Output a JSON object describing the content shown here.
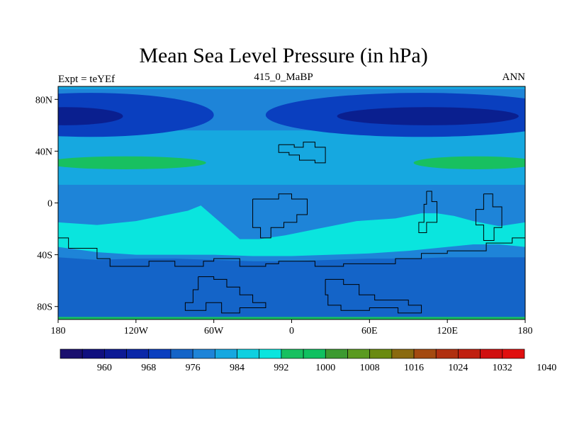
{
  "title": "Mean Sea Level Pressure (in hPa)",
  "left_label": "Expt = teYEf",
  "center_label": "415_0_MaBP",
  "right_label": "ANN",
  "chart_data": {
    "type": "heatmap",
    "title": "Mean Sea Level Pressure (in hPa)",
    "x_range": [
      -180,
      180
    ],
    "y_range": [
      -90,
      90
    ],
    "x_ticks": [
      {
        "value": -180,
        "label": "180"
      },
      {
        "value": -120,
        "label": "120W"
      },
      {
        "value": -60,
        "label": "60W"
      },
      {
        "value": 0,
        "label": "0"
      },
      {
        "value": 60,
        "label": "60E"
      },
      {
        "value": 120,
        "label": "120E"
      },
      {
        "value": 180,
        "label": "180"
      }
    ],
    "y_ticks": [
      {
        "value": 80,
        "label": "80N"
      },
      {
        "value": 40,
        "label": "40N"
      },
      {
        "value": 0,
        "label": "0"
      },
      {
        "value": -40,
        "label": "40S"
      },
      {
        "value": -80,
        "label": "80S"
      }
    ],
    "colorbar": {
      "colors": [
        "#1a0f6e",
        "#10107f",
        "#0c1a95",
        "#0a27a8",
        "#0a3fbf",
        "#1464c8",
        "#1e84d8",
        "#16a8e0",
        "#0fd0e0",
        "#0ae5de",
        "#18c060",
        "#10c060",
        "#3c9a30",
        "#5a9a20",
        "#6a8a10",
        "#8a6a10",
        "#a44a10",
        "#b03010",
        "#c02010",
        "#d01010",
        "#e01010"
      ],
      "tick_labels": [
        "960",
        "968",
        "976",
        "984",
        "992",
        "1000",
        "1008",
        "1016",
        "1024",
        "1032",
        "1040"
      ]
    },
    "fields": [
      {
        "level": "988",
        "color": "#1e84d8",
        "region": "global background"
      },
      {
        "level": "980",
        "color": "#0a3fbf",
        "region": "northern subpolar trough (lon -180..-95 and -5..180)"
      },
      {
        "level": "972",
        "color": "#0a1f8f",
        "region": "northern low cores"
      },
      {
        "level": "992",
        "color": "#16a8e0",
        "region": "northern mid-latitude band"
      },
      {
        "level": "1004",
        "color": "#18c060",
        "region": "northern subtropical high cells"
      },
      {
        "level": "992",
        "color": "#16a8e0",
        "region": "tropical belt"
      },
      {
        "level": "996",
        "color": "#0ae5de",
        "region": "southern subtropical high belt"
      },
      {
        "level": "984",
        "color": "#1464c8",
        "region": "southern subpolar band"
      },
      {
        "level": "988",
        "color": "#1e84d8",
        "region": "monsoon lows"
      }
    ],
    "continents": [
      {
        "name": "northern-small-continent",
        "lonlat": [
          [
            -10,
            45
          ],
          [
            2,
            45
          ],
          [
            2,
            43
          ],
          [
            9,
            43
          ],
          [
            9,
            47
          ],
          [
            18,
            47
          ],
          [
            18,
            43
          ],
          [
            26,
            43
          ],
          [
            26,
            31
          ],
          [
            18,
            31
          ],
          [
            18,
            33
          ],
          [
            6,
            33
          ],
          [
            6,
            37
          ],
          [
            -2,
            37
          ],
          [
            -2,
            39
          ],
          [
            -10,
            39
          ],
          [
            -10,
            45
          ]
        ]
      },
      {
        "name": "equatorial-continent-north",
        "lonlat": [
          [
            -30,
            3
          ],
          [
            -10,
            3
          ],
          [
            -10,
            7
          ],
          [
            0,
            7
          ],
          [
            0,
            3
          ],
          [
            12,
            3
          ],
          [
            12,
            -9
          ],
          [
            4,
            -9
          ],
          [
            4,
            -15
          ],
          [
            -6,
            -15
          ],
          [
            -6,
            -19
          ],
          [
            -16,
            -19
          ],
          [
            -16,
            -27
          ],
          [
            -24,
            -27
          ],
          [
            -24,
            -19
          ],
          [
            -30,
            -19
          ],
          [
            -30,
            3
          ]
        ]
      },
      {
        "name": "eastern-island-chain",
        "lonlat": [
          [
            104,
            9
          ],
          [
            108,
            9
          ],
          [
            108,
            1
          ],
          [
            112,
            1
          ],
          [
            112,
            -15
          ],
          [
            104,
            -15
          ],
          [
            104,
            -23
          ],
          [
            98,
            -23
          ],
          [
            98,
            -15
          ],
          [
            102,
            -15
          ],
          [
            102,
            -1
          ],
          [
            104,
            -1
          ],
          [
            104,
            9
          ]
        ]
      },
      {
        "name": "far-east-landmass",
        "lonlat": [
          [
            148,
            7
          ],
          [
            155,
            7
          ],
          [
            155,
            -3
          ],
          [
            162,
            -3
          ],
          [
            162,
            -19
          ],
          [
            156,
            -19
          ],
          [
            156,
            -29
          ],
          [
            148,
            -29
          ],
          [
            148,
            -17
          ],
          [
            142,
            -17
          ],
          [
            142,
            -5
          ],
          [
            148,
            -5
          ],
          [
            148,
            7
          ]
        ]
      },
      {
        "name": "western-southern-coast",
        "lonlat": [
          [
            -180,
            -27
          ],
          [
            -172,
            -27
          ],
          [
            -172,
            -35
          ],
          [
            -150,
            -35
          ],
          [
            -150,
            -43
          ],
          [
            -140,
            -43
          ],
          [
            -140,
            -49
          ],
          [
            -110,
            -49
          ],
          [
            -110,
            -45
          ],
          [
            -90,
            -45
          ],
          [
            -90,
            -49
          ],
          [
            -68,
            -49
          ],
          [
            -68,
            -45
          ],
          [
            -60,
            -45
          ],
          [
            -60,
            -43
          ],
          [
            -40,
            -43
          ],
          [
            -40,
            -49
          ],
          [
            -20,
            -49
          ],
          [
            -20,
            -47
          ],
          [
            -10,
            -47
          ],
          [
            -10,
            -45
          ],
          [
            18,
            -45
          ],
          [
            18,
            -49
          ],
          [
            40,
            -49
          ],
          [
            40,
            -47
          ],
          [
            80,
            -47
          ],
          [
            80,
            -43
          ],
          [
            100,
            -43
          ],
          [
            100,
            -39
          ],
          [
            120,
            -39
          ],
          [
            120,
            -37
          ],
          [
            150,
            -37
          ],
          [
            150,
            -31
          ],
          [
            170,
            -31
          ],
          [
            170,
            -27
          ],
          [
            180,
            -27
          ]
        ]
      },
      {
        "name": "southern-polar-continent",
        "lonlat": [
          [
            -72,
            -57
          ],
          [
            -60,
            -57
          ],
          [
            -60,
            -59
          ],
          [
            -50,
            -59
          ],
          [
            -50,
            -65
          ],
          [
            -40,
            -65
          ],
          [
            -40,
            -71
          ],
          [
            -30,
            -71
          ],
          [
            -30,
            -77
          ],
          [
            -20,
            -77
          ],
          [
            -20,
            -81
          ],
          [
            -40,
            -81
          ],
          [
            -40,
            -85
          ],
          [
            -54,
            -85
          ],
          [
            -54,
            -77
          ],
          [
            -66,
            -77
          ],
          [
            -66,
            -83
          ],
          [
            -82,
            -83
          ],
          [
            -82,
            -77
          ],
          [
            -76,
            -77
          ],
          [
            -76,
            -67
          ],
          [
            -72,
            -67
          ],
          [
            -72,
            -57
          ]
        ]
      },
      {
        "name": "southern-antarctic-east",
        "lonlat": [
          [
            26,
            -59
          ],
          [
            40,
            -59
          ],
          [
            40,
            -63
          ],
          [
            52,
            -63
          ],
          [
            52,
            -71
          ],
          [
            64,
            -71
          ],
          [
            64,
            -75
          ],
          [
            90,
            -75
          ],
          [
            90,
            -79
          ],
          [
            100,
            -79
          ],
          [
            100,
            -85
          ],
          [
            82,
            -85
          ],
          [
            82,
            -81
          ],
          [
            60,
            -81
          ],
          [
            60,
            -83
          ],
          [
            38,
            -83
          ],
          [
            38,
            -79
          ],
          [
            28,
            -79
          ],
          [
            28,
            -71
          ],
          [
            26,
            -71
          ],
          [
            26,
            -59
          ]
        ]
      }
    ]
  }
}
